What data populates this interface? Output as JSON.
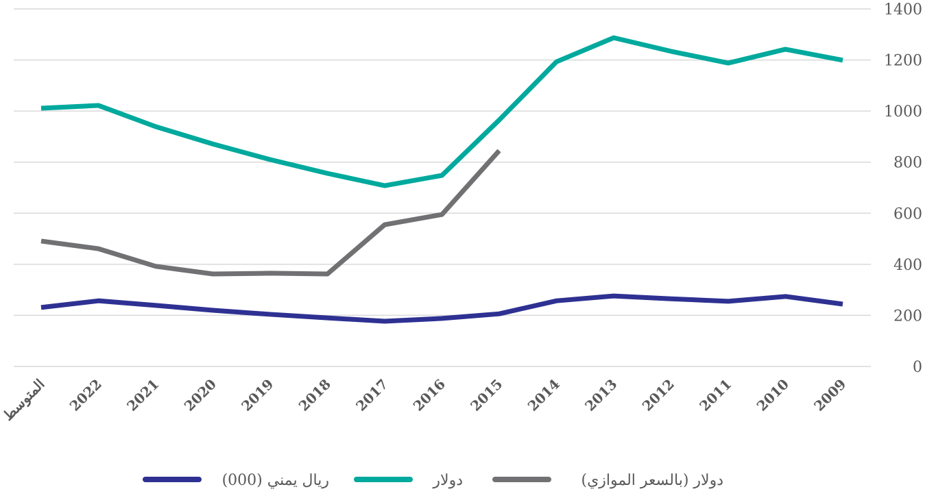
{
  "chart_data": {
    "type": "line",
    "categories": [
      "المتوسط",
      "2022",
      "2021",
      "2020",
      "2019",
      "2018",
      "2017",
      "2016",
      "2015",
      "2014",
      "2013",
      "2012",
      "2011",
      "2010",
      "2009"
    ],
    "series": [
      {
        "name": "ريال يمني (000)",
        "color": "#2e3192",
        "values": [
          231,
          257,
          239,
          220,
          204,
          190,
          177,
          188,
          206,
          257,
          276,
          265,
          255,
          274,
          244
        ]
      },
      {
        "name": "دولار",
        "color": "#00a99d",
        "values": [
          1011,
          1022,
          939,
          871,
          810,
          756,
          708,
          748,
          965,
          1193,
          1287,
          1234,
          1188,
          1242,
          1199
        ]
      },
      {
        "name": "دولار (بالسعر الموازي)",
        "color": "#717073",
        "values": [
          491,
          461,
          392,
          362,
          365,
          362,
          555,
          595,
          845,
          null,
          null,
          null,
          null,
          null,
          null
        ]
      }
    ],
    "ylim": [
      0,
      1400
    ],
    "yticks": [
      0,
      200,
      400,
      600,
      800,
      1000,
      1200,
      1400
    ],
    "grid": true,
    "y_axis_side": "right",
    "legend": "bottom"
  }
}
